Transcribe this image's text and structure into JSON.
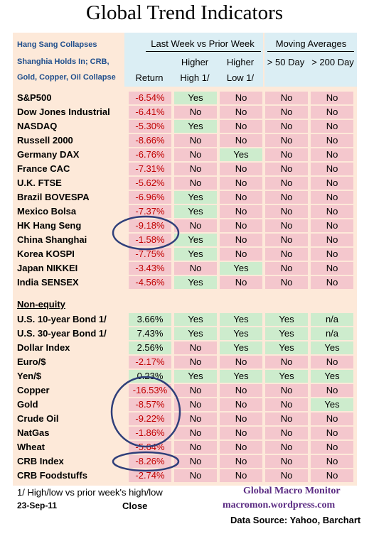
{
  "title": "Global Trend Indicators",
  "header": {
    "note_lines": [
      "Hang Sang Collapses",
      "Shanghia Holds In;  CRB,",
      "Gold, Copper, Oil Collapse"
    ],
    "group_last_week": "Last Week vs Prior Week",
    "group_moving": "Moving Averages",
    "col_return": "Return",
    "col_higher_high_1": "Higher",
    "col_higher_high_2": "High  1/",
    "col_higher_low_1": "Higher",
    "col_higher_low_2": "Low  1/",
    "col_50": "> 50 Day",
    "col_200": "> 200 Day"
  },
  "colors": {
    "red": "#f4c7cd",
    "green": "#cdeccd",
    "panel": "#fde9d9",
    "header_blue": "#dbeef4",
    "oval": "#2f3f7a"
  },
  "chart_data": {
    "type": "table",
    "columns": [
      "Return",
      "Higher High 1/",
      "Higher Low 1/",
      "> 50 Day",
      "> 200 Day"
    ],
    "section_label": "Non-equity",
    "equity_rows": [
      {
        "name": "S&P500",
        "ret": "-6.54%",
        "hh": "Yes",
        "hl": "No",
        "d50": "No",
        "d200": "No"
      },
      {
        "name": "Dow Jones Industrial",
        "ret": "-6.41%",
        "hh": "No",
        "hl": "No",
        "d50": "No",
        "d200": "No"
      },
      {
        "name": "NASDAQ",
        "ret": "-5.30%",
        "hh": "Yes",
        "hl": "No",
        "d50": "No",
        "d200": "No"
      },
      {
        "name": "Russell 2000",
        "ret": "-8.66%",
        "hh": "No",
        "hl": "No",
        "d50": "No",
        "d200": "No"
      },
      {
        "name": "Germany DAX",
        "ret": "-6.76%",
        "hh": "No",
        "hl": "Yes",
        "d50": "No",
        "d200": "No"
      },
      {
        "name": "France CAC",
        "ret": "-7.31%",
        "hh": "No",
        "hl": "No",
        "d50": "No",
        "d200": "No"
      },
      {
        "name": "U.K. FTSE",
        "ret": "-5.62%",
        "hh": "No",
        "hl": "No",
        "d50": "No",
        "d200": "No"
      },
      {
        "name": "Brazil BOVESPA",
        "ret": "-6.96%",
        "hh": "Yes",
        "hl": "No",
        "d50": "No",
        "d200": "No"
      },
      {
        "name": "Mexico Bolsa",
        "ret": "-7.37%",
        "hh": "Yes",
        "hl": "No",
        "d50": "No",
        "d200": "No"
      },
      {
        "name": "HK  Hang Seng",
        "ret": "-9.18%",
        "hh": "No",
        "hl": "No",
        "d50": "No",
        "d200": "No"
      },
      {
        "name": "China Shanghai",
        "ret": "-1.58%",
        "hh": "Yes",
        "hl": "No",
        "d50": "No",
        "d200": "No"
      },
      {
        "name": "Korea KOSPI",
        "ret": "-7.75%",
        "hh": "Yes",
        "hl": "No",
        "d50": "No",
        "d200": "No"
      },
      {
        "name": "Japan NIKKEI",
        "ret": "-3.43%",
        "hh": "No",
        "hl": "Yes",
        "d50": "No",
        "d200": "No"
      },
      {
        "name": "India SENSEX",
        "ret": "-4.56%",
        "hh": "Yes",
        "hl": "No",
        "d50": "No",
        "d200": "No"
      }
    ],
    "nonequity_rows": [
      {
        "name": "U.S. 10-year Bond 1/",
        "ret": "3.66%",
        "hh": "Yes",
        "hl": "Yes",
        "d50": "Yes",
        "d200": "n/a"
      },
      {
        "name": "U.S. 30-year Bond 1/",
        "ret": "7.43%",
        "hh": "Yes",
        "hl": "Yes",
        "d50": "Yes",
        "d200": "n/a"
      },
      {
        "name": "Dollar Index",
        "ret": "2.56%",
        "hh": "No",
        "hl": "Yes",
        "d50": "Yes",
        "d200": "Yes"
      },
      {
        "name": "Euro/$",
        "ret": "-2.17%",
        "hh": "No",
        "hl": "No",
        "d50": "No",
        "d200": "No"
      },
      {
        "name": "Yen/$",
        "ret": "0.23%",
        "hh": "Yes",
        "hl": "Yes",
        "d50": "Yes",
        "d200": "Yes"
      },
      {
        "name": "Copper",
        "ret": "-16.53%",
        "hh": "No",
        "hl": "No",
        "d50": "No",
        "d200": "No"
      },
      {
        "name": "Gold",
        "ret": "-8.57%",
        "hh": "No",
        "hl": "No",
        "d50": "No",
        "d200": "Yes"
      },
      {
        "name": "Crude Oil",
        "ret": "-9.22%",
        "hh": "No",
        "hl": "No",
        "d50": "No",
        "d200": "No"
      },
      {
        "name": "NatGas",
        "ret": "-1.86%",
        "hh": "No",
        "hl": "No",
        "d50": "No",
        "d200": "No"
      },
      {
        "name": "Wheat",
        "ret": "-5.64%",
        "hh": "No",
        "hl": "No",
        "d50": "No",
        "d200": "No"
      },
      {
        "name": "CRB Index",
        "ret": "-8.26%",
        "hh": "No",
        "hl": "No",
        "d50": "No",
        "d200": "No"
      },
      {
        "name": "CRB Foodstuffs",
        "ret": "-2.74%",
        "hh": "No",
        "hl": "No",
        "d50": "No",
        "d200": "No"
      }
    ],
    "circled_rows": [
      "HK  Hang Seng",
      "China Shanghai",
      "Copper",
      "Gold",
      "Crude Oil",
      "NatGas",
      "CRB Index"
    ]
  },
  "footer": {
    "footnote": "1/  High/low vs prior week's high/low",
    "date": "23-Sep-11",
    "close": "Close",
    "credit_title": "Global Macro Monitor",
    "credit_site": "macromon.wordpress.com",
    "source": "Data Source: Yahoo, Barchart"
  }
}
